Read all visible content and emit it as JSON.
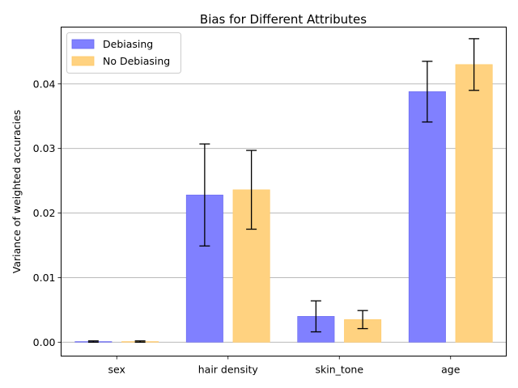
{
  "chart_data": {
    "type": "bar",
    "title": "Bias for Different Attributes",
    "xlabel": "",
    "ylabel": "Variance of weighted accuracies",
    "categories": [
      "sex",
      "hair density",
      "skin_tone",
      "age"
    ],
    "series": [
      {
        "name": "Debiasing",
        "color": "#8080ff",
        "edge_color": "#6666ee",
        "values": [
          0.0001,
          0.0228,
          0.004,
          0.0388
        ],
        "errors": [
          0.0001,
          0.0079,
          0.0024,
          0.0047
        ]
      },
      {
        "name": "No Debiasing",
        "color": "#ffd280",
        "edge_color": "#ffc966",
        "values": [
          0.0001,
          0.0236,
          0.0035,
          0.043
        ],
        "errors": [
          0.0001,
          0.0061,
          0.0014,
          0.004
        ]
      }
    ],
    "yticks": [
      "0.00",
      "0.01",
      "0.02",
      "0.03",
      "0.04"
    ],
    "ytick_values": [
      0,
      0.01,
      0.02,
      0.03,
      0.04
    ],
    "ylim": [
      -0.00215,
      0.0488
    ],
    "grid": "y",
    "legend": "top-left"
  }
}
